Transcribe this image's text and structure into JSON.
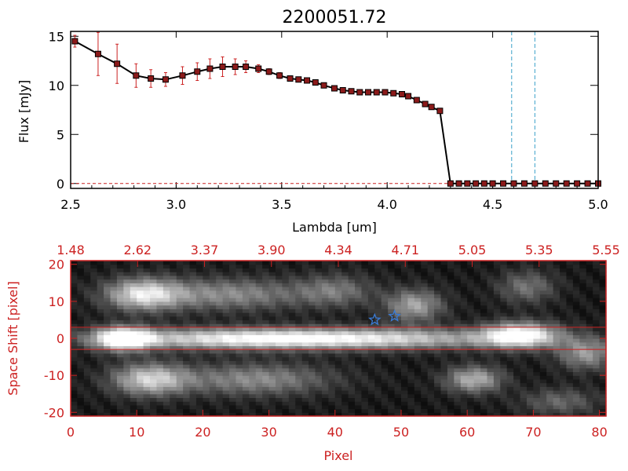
{
  "chart_data": [
    {
      "type": "line",
      "title": "2200051.72",
      "xlabel": "Lambda [um]",
      "ylabel": "Flux [mJy]",
      "xlim": [
        2.5,
        5.0
      ],
      "ylim": [
        -0.5,
        15.5
      ],
      "x_ticks": [
        "2.5",
        "3.0",
        "3.5",
        "4.0",
        "4.5",
        "5.0"
      ],
      "y_ticks": [
        "0",
        "5",
        "10",
        "15"
      ],
      "series": [
        {
          "color": "#000000",
          "marker_color": "#8b1a1a",
          "errorbar_color": "#cc2222",
          "x": [
            2.52,
            2.63,
            2.72,
            2.81,
            2.88,
            2.95,
            3.03,
            3.1,
            3.16,
            3.22,
            3.28,
            3.33,
            3.39,
            3.44,
            3.49,
            3.54,
            3.58,
            3.62,
            3.66,
            3.7,
            3.75,
            3.79,
            3.83,
            3.87,
            3.91,
            3.95,
            3.99,
            4.03,
            4.07,
            4.1,
            4.14,
            4.18,
            4.21,
            4.25,
            4.3,
            4.34,
            4.38,
            4.42,
            4.46,
            4.5,
            4.55,
            4.6,
            4.65,
            4.7,
            4.75,
            4.8,
            4.85,
            4.9,
            4.95,
            5.0
          ],
          "y": [
            14.5,
            13.2,
            12.2,
            11.0,
            10.7,
            10.6,
            11.0,
            11.4,
            11.7,
            11.9,
            11.9,
            11.9,
            11.7,
            11.4,
            11.0,
            10.7,
            10.6,
            10.5,
            10.3,
            10.0,
            9.7,
            9.5,
            9.4,
            9.3,
            9.3,
            9.3,
            9.3,
            9.2,
            9.1,
            8.9,
            8.5,
            8.1,
            7.8,
            7.4,
            0.0,
            0.0,
            0.0,
            0.0,
            0.0,
            0.0,
            0.0,
            0.0,
            0.0,
            0.0,
            0.0,
            0.0,
            0.0,
            0.0,
            0.0,
            0.0
          ],
          "yerr": [
            0.6,
            2.2,
            2.0,
            1.2,
            0.9,
            0.7,
            0.9,
            0.9,
            1.0,
            1.0,
            0.8,
            0.6,
            0.4,
            0.3,
            0.3,
            0.2,
            0.2,
            0.2,
            0.2,
            0.2,
            0.2,
            0.2,
            0.2,
            0.2,
            0.2,
            0.2,
            0.2,
            0.2,
            0.2,
            0.2,
            0.2,
            0.2,
            0.2,
            0.2,
            0.0,
            0.0,
            0.0,
            0.0,
            0.0,
            0.0,
            0.0,
            0.0,
            0.0,
            0.0,
            0.0,
            0.0,
            0.0,
            0.0,
            0.0,
            0.0
          ]
        }
      ],
      "vlines": {
        "x": [
          4.59,
          4.7
        ],
        "color": "#3aa0c8",
        "style": "dashed"
      },
      "hline": {
        "y": 0,
        "color": "#cc2222",
        "style": "dashed"
      }
    },
    {
      "type": "heatmap",
      "xlabel": "Pixel",
      "ylabel": "Space Shift [pixel]",
      "xlim": [
        0,
        81
      ],
      "ylim": [
        -21,
        21
      ],
      "x_ticks": [
        "0",
        "10",
        "20",
        "30",
        "40",
        "50",
        "60",
        "70",
        "80"
      ],
      "y_ticks": [
        "-20",
        "-10",
        "0",
        "10",
        "20"
      ],
      "top_axis_ticks": [
        "1.48",
        "2.62",
        "3.37",
        "3.90",
        "4.34",
        "4.71",
        "5.05",
        "5.35",
        "5.55"
      ],
      "colormap": "grayscale",
      "axis_color": "#cc2222",
      "extraction_lines_y": [
        3,
        -3
      ],
      "markers": [
        {
          "shape": "star",
          "x": 46,
          "y": 5,
          "color": "#3a7bd5"
        },
        {
          "shape": "star",
          "x": 49,
          "y": 6,
          "color": "#3a7bd5"
        }
      ]
    }
  ]
}
